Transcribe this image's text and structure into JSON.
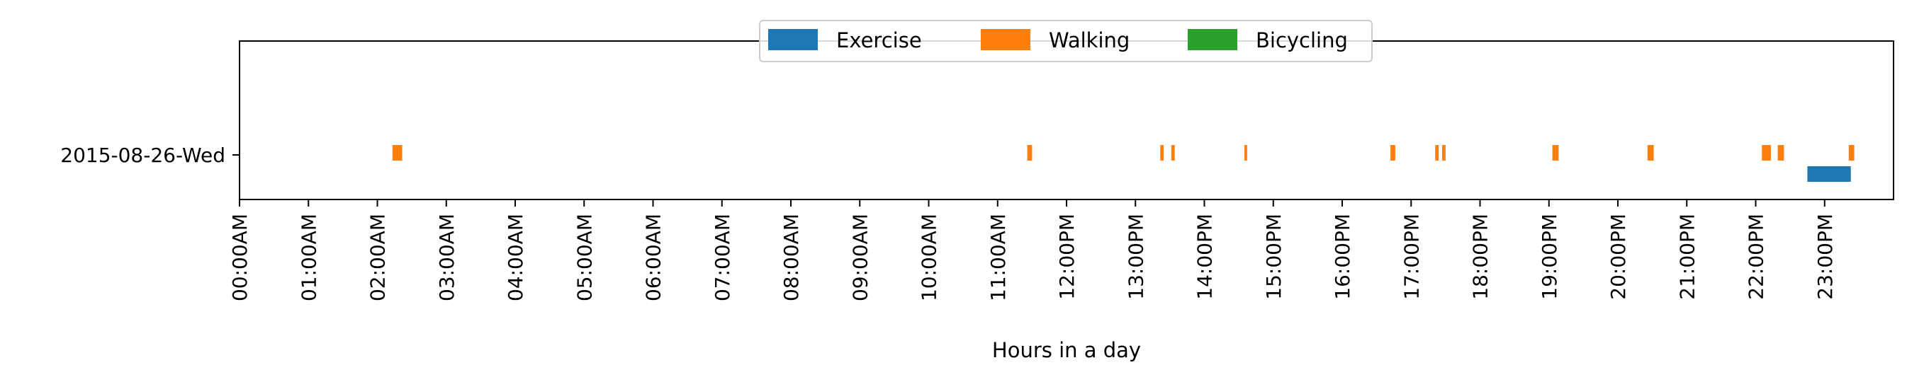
{
  "chart_data": {
    "type": "broken_barh",
    "title": "",
    "xlabel": "Hours in a day",
    "ylabel": "",
    "xlim": [
      0,
      24
    ],
    "x_unit": "hours",
    "grid": false,
    "legend": {
      "placement": "upper center",
      "entries": [
        {
          "name": "Exercise",
          "color": "#1f77b4"
        },
        {
          "name": "Walking",
          "color": "#ff7f0e"
        },
        {
          "name": "Bicycling",
          "color": "#2ca02c"
        }
      ]
    },
    "x_tick_labels": [
      "00:00AM",
      "01:00AM",
      "02:00AM",
      "03:00AM",
      "04:00AM",
      "05:00AM",
      "06:00AM",
      "07:00AM",
      "08:00AM",
      "09:00AM",
      "10:00AM",
      "11:00AM",
      "12:00PM",
      "13:00PM",
      "14:00PM",
      "15:00PM",
      "16:00PM",
      "17:00PM",
      "18:00PM",
      "19:00PM",
      "20:00PM",
      "21:00PM",
      "22:00PM",
      "23:00PM"
    ],
    "rows": [
      {
        "label": "2015-08-26-Wed",
        "series": [
          {
            "name": "Exercise",
            "color": "#1f77b4",
            "intervals": [
              [
                22.75,
                23.38
              ]
            ]
          },
          {
            "name": "Walking",
            "color": "#ff7f0e",
            "intervals": [
              [
                2.22,
                2.36
              ],
              [
                11.43,
                11.5
              ],
              [
                13.36,
                13.41
              ],
              [
                13.52,
                13.57
              ],
              [
                14.58,
                14.62
              ],
              [
                16.7,
                16.77
              ],
              [
                17.35,
                17.4
              ],
              [
                17.45,
                17.5
              ],
              [
                19.05,
                19.14
              ],
              [
                20.43,
                20.52
              ],
              [
                22.09,
                22.22
              ],
              [
                22.32,
                22.41
              ],
              [
                23.35,
                23.43
              ]
            ]
          },
          {
            "name": "Bicycling",
            "color": "#2ca02c",
            "intervals": []
          }
        ]
      }
    ]
  }
}
